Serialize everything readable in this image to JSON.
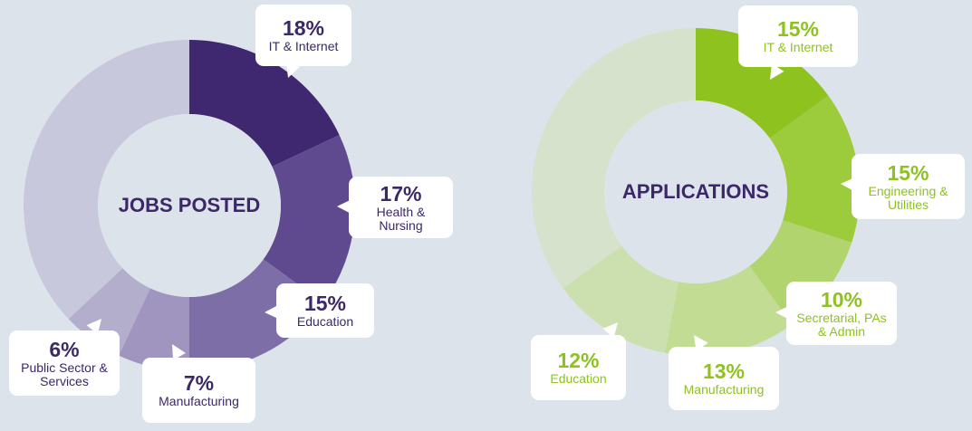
{
  "chart_data": [
    {
      "type": "donut",
      "title": "JOBS POSTED",
      "categories": [
        "IT & Internet",
        "Health & Nursing",
        "Education",
        "Manufacturing",
        "Public Sector & Services",
        null
      ],
      "values": [
        18,
        17,
        15,
        7,
        6,
        37
      ],
      "value_labels": [
        "18%",
        "17%",
        "15%",
        "7%",
        "6%",
        null
      ],
      "colors": [
        "#3f2870",
        "#5f4a8f",
        "#7e6ea8",
        "#9f95be",
        "#b4aecd",
        "#c8c8dc"
      ],
      "label_color": "#3a2868"
    },
    {
      "type": "donut",
      "title": "APPLICATIONS",
      "categories": [
        "IT & Internet",
        "Engineering & Utilities",
        "Secretarial, PAs & Admin",
        "Manufacturing",
        "Education",
        null
      ],
      "values": [
        15,
        15,
        10,
        13,
        12,
        35
      ],
      "value_labels": [
        "15%",
        "15%",
        "10%",
        "13%",
        "12%",
        null
      ],
      "colors": [
        "#8dc21f",
        "#9ccb3c",
        "#b2d46f",
        "#c3dc94",
        "#ccdfae",
        "#d6e2cc"
      ],
      "label_color": "#8dc21f"
    }
  ]
}
